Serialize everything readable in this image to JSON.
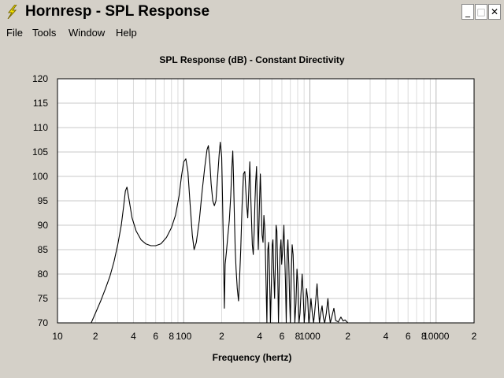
{
  "window": {
    "title": "Hornresp - SPL Response",
    "minimize_glyph": "_",
    "maximize_glyph": "□",
    "close_glyph": "✕",
    "icon": "lightning-bolt-icon"
  },
  "menu": {
    "items": [
      {
        "label": "File"
      },
      {
        "label": "Tools"
      },
      {
        "label": "Window"
      },
      {
        "label": "Help"
      }
    ]
  },
  "chart_data": {
    "type": "line",
    "title": "SPL Response (dB) - Constant Directivity",
    "xlabel": "Frequency (hertz)",
    "ylabel": "",
    "x_scale": "log",
    "xlim": [
      10,
      20000
    ],
    "ylim": [
      70,
      120
    ],
    "yticks": [
      70,
      75,
      80,
      85,
      90,
      95,
      100,
      105,
      110,
      115,
      120
    ],
    "xtick_labels": [
      {
        "v": 10,
        "t": "10"
      },
      {
        "v": 20,
        "t": "2"
      },
      {
        "v": 40,
        "t": "4"
      },
      {
        "v": 60,
        "t": "6"
      },
      {
        "v": 80,
        "t": "8"
      },
      {
        "v": 100,
        "t": "100"
      },
      {
        "v": 200,
        "t": "2"
      },
      {
        "v": 400,
        "t": "4"
      },
      {
        "v": 600,
        "t": "6"
      },
      {
        "v": 800,
        "t": "8"
      },
      {
        "v": 1000,
        "t": "1000"
      },
      {
        "v": 2000,
        "t": "2"
      },
      {
        "v": 4000,
        "t": "4"
      },
      {
        "v": 6000,
        "t": "6"
      },
      {
        "v": 8000,
        "t": "8"
      },
      {
        "v": 10000,
        "t": "10000"
      },
      {
        "v": 20000,
        "t": "2"
      }
    ],
    "grid": true,
    "line_color": "#000000",
    "series": [
      {
        "points": [
          [
            18.5,
            70
          ],
          [
            20,
            72
          ],
          [
            22,
            74.5
          ],
          [
            24,
            77
          ],
          [
            26,
            79.5
          ],
          [
            28,
            82.5
          ],
          [
            30,
            86
          ],
          [
            32,
            90
          ],
          [
            33.5,
            94
          ],
          [
            34.5,
            97
          ],
          [
            35.5,
            97.8
          ],
          [
            37,
            95
          ],
          [
            39,
            91.5
          ],
          [
            42,
            88.8
          ],
          [
            46,
            87
          ],
          [
            50,
            86.2
          ],
          [
            55,
            85.8
          ],
          [
            60,
            85.8
          ],
          [
            66,
            86.2
          ],
          [
            73,
            87.5
          ],
          [
            80,
            89.5
          ],
          [
            86,
            92
          ],
          [
            92,
            96
          ],
          [
            96,
            100
          ],
          [
            100,
            103
          ],
          [
            104,
            103.6
          ],
          [
            108,
            101
          ],
          [
            112,
            95
          ],
          [
            117,
            88
          ],
          [
            121,
            85
          ],
          [
            126,
            86.5
          ],
          [
            133,
            91
          ],
          [
            140,
            97
          ],
          [
            147,
            102
          ],
          [
            153,
            105.5
          ],
          [
            157,
            106.3
          ],
          [
            161,
            103
          ],
          [
            165,
            98.5
          ],
          [
            170,
            95
          ],
          [
            175,
            94
          ],
          [
            180,
            95
          ],
          [
            186,
            100
          ],
          [
            191,
            104.5
          ],
          [
            195,
            107
          ],
          [
            200,
            104
          ],
          [
            203,
            96
          ],
          [
            206,
            86
          ],
          [
            210,
            73
          ],
          [
            213,
            82
          ],
          [
            218,
            84.5
          ],
          [
            224,
            88
          ],
          [
            230,
            91
          ],
          [
            236,
            96
          ],
          [
            241,
            102
          ],
          [
            245,
            105.2
          ],
          [
            248,
            100
          ],
          [
            252,
            92
          ],
          [
            256,
            85
          ],
          [
            260,
            81
          ],
          [
            266,
            77
          ],
          [
            272,
            74.5
          ],
          [
            277,
            79
          ],
          [
            283,
            85
          ],
          [
            290,
            94
          ],
          [
            298,
            100.5
          ],
          [
            305,
            101
          ],
          [
            311,
            97
          ],
          [
            316,
            94
          ],
          [
            322,
            91.5
          ],
          [
            328,
            97
          ],
          [
            334,
            103
          ],
          [
            340,
            96
          ],
          [
            345,
            91
          ],
          [
            350,
            86
          ],
          [
            356,
            84
          ],
          [
            362,
            89
          ],
          [
            367,
            94.5
          ],
          [
            372,
            99
          ],
          [
            378,
            102
          ],
          [
            384,
            92
          ],
          [
            390,
            85
          ],
          [
            398,
            94
          ],
          [
            405,
            100.5
          ],
          [
            411,
            95
          ],
          [
            418,
            88
          ],
          [
            425,
            86.5
          ],
          [
            432,
            92
          ],
          [
            440,
            89
          ],
          [
            448,
            80
          ],
          [
            456,
            70
          ],
          [
            464,
            85
          ],
          [
            471,
            86.5
          ],
          [
            479,
            80
          ],
          [
            487,
            70
          ],
          [
            495,
            78
          ],
          [
            503,
            86
          ],
          [
            510,
            87
          ],
          [
            517,
            80
          ],
          [
            525,
            75
          ],
          [
            532,
            82
          ],
          [
            540,
            90
          ],
          [
            548,
            88.8
          ],
          [
            556,
            80
          ],
          [
            564,
            70
          ],
          [
            573,
            79
          ],
          [
            582,
            85
          ],
          [
            590,
            87
          ],
          [
            598,
            82
          ],
          [
            606,
            84
          ],
          [
            614,
            87
          ],
          [
            622,
            90
          ],
          [
            630,
            85
          ],
          [
            640,
            79
          ],
          [
            650,
            70
          ],
          [
            660,
            84
          ],
          [
            670,
            87
          ],
          [
            680,
            82
          ],
          [
            690,
            75
          ],
          [
            700,
            70
          ],
          [
            712,
            80
          ],
          [
            724,
            86
          ],
          [
            736,
            84
          ],
          [
            748,
            78
          ],
          [
            760,
            70
          ],
          [
            775,
            74
          ],
          [
            790,
            81
          ],
          [
            805,
            78
          ],
          [
            820,
            70
          ],
          [
            835,
            72
          ],
          [
            850,
            76
          ],
          [
            868,
            80
          ],
          [
            885,
            76
          ],
          [
            902,
            70
          ],
          [
            920,
            73
          ],
          [
            940,
            77
          ],
          [
            960,
            75
          ],
          [
            980,
            70
          ],
          [
            1000,
            72
          ],
          [
            1020,
            75
          ],
          [
            1045,
            72
          ],
          [
            1070,
            70
          ],
          [
            1090,
            72
          ],
          [
            1115,
            75
          ],
          [
            1140,
            78
          ],
          [
            1165,
            74
          ],
          [
            1190,
            70
          ],
          [
            1220,
            72
          ],
          [
            1250,
            73.5
          ],
          [
            1280,
            71
          ],
          [
            1310,
            70
          ],
          [
            1350,
            72
          ],
          [
            1390,
            75
          ],
          [
            1420,
            72
          ],
          [
            1450,
            70
          ],
          [
            1500,
            71.5
          ],
          [
            1550,
            73
          ],
          [
            1600,
            70.5
          ],
          [
            1680,
            70.2
          ],
          [
            1760,
            71.2
          ],
          [
            1830,
            70.4
          ],
          [
            1900,
            70.6
          ],
          [
            2000,
            70
          ]
        ]
      }
    ]
  }
}
